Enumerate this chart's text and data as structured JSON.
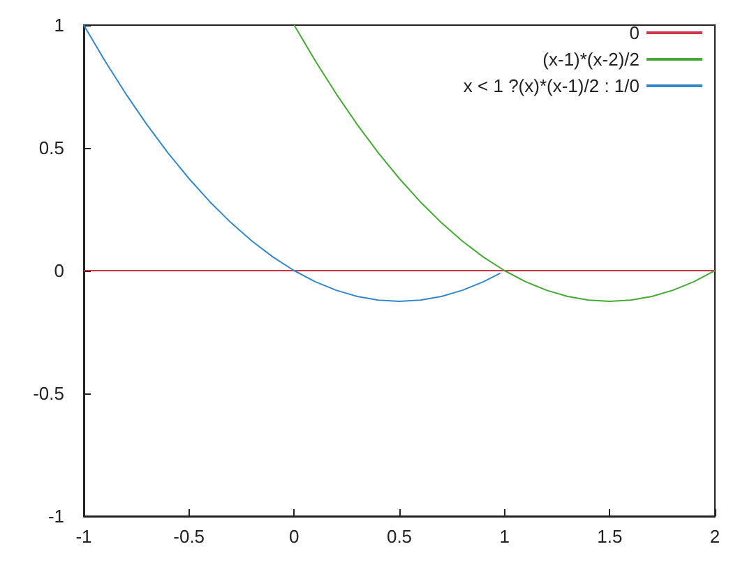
{
  "chart_data": {
    "type": "line",
    "xlim": [
      -1,
      2
    ],
    "xticks": [
      -1,
      -0.5,
      0,
      0.5,
      1,
      1.5,
      2
    ],
    "ylim": [
      -1,
      1
    ],
    "yticks": [
      -1,
      -0.5,
      0,
      0.5,
      1
    ],
    "grid": false,
    "legend": "top right",
    "marker": "none",
    "line_style": "solid",
    "series": [
      {
        "name": "0",
        "color": "#cc3344",
        "x": [
          -1,
          2
        ],
        "values": [
          0,
          0
        ]
      },
      {
        "name": "(x-1)*(x-2)/2",
        "color": "#44aa33",
        "x": [
          0,
          0.1,
          0.2,
          0.3,
          0.4,
          0.5,
          0.6,
          0.7,
          0.8,
          0.9,
          1,
          1.1,
          1.2,
          1.3,
          1.4,
          1.5,
          1.6,
          1.7,
          1.8,
          1.9,
          2
        ],
        "values": [
          1,
          0.855,
          0.72,
          0.595,
          0.48,
          0.375,
          0.28,
          0.195,
          0.12,
          0.055,
          0,
          -0.045,
          -0.08,
          -0.105,
          -0.12,
          -0.125,
          -0.12,
          -0.105,
          -0.08,
          -0.045,
          0
        ]
      },
      {
        "name": "x < 1 ?(x)*(x-1)/2 : 1/0",
        "color": "#3388cc",
        "x": [
          -1,
          -0.9,
          -0.8,
          -0.7,
          -0.6,
          -0.5,
          -0.4,
          -0.3,
          -0.2,
          -0.1,
          0,
          0.1,
          0.2,
          0.3,
          0.4,
          0.5,
          0.6,
          0.7,
          0.8,
          0.9,
          0.98
        ],
        "values": [
          1,
          0.855,
          0.72,
          0.595,
          0.48,
          0.375,
          0.28,
          0.195,
          0.12,
          0.055,
          0,
          -0.045,
          -0.08,
          -0.105,
          -0.12,
          -0.125,
          -0.12,
          -0.105,
          -0.08,
          -0.045,
          -0.01
        ]
      }
    ]
  }
}
